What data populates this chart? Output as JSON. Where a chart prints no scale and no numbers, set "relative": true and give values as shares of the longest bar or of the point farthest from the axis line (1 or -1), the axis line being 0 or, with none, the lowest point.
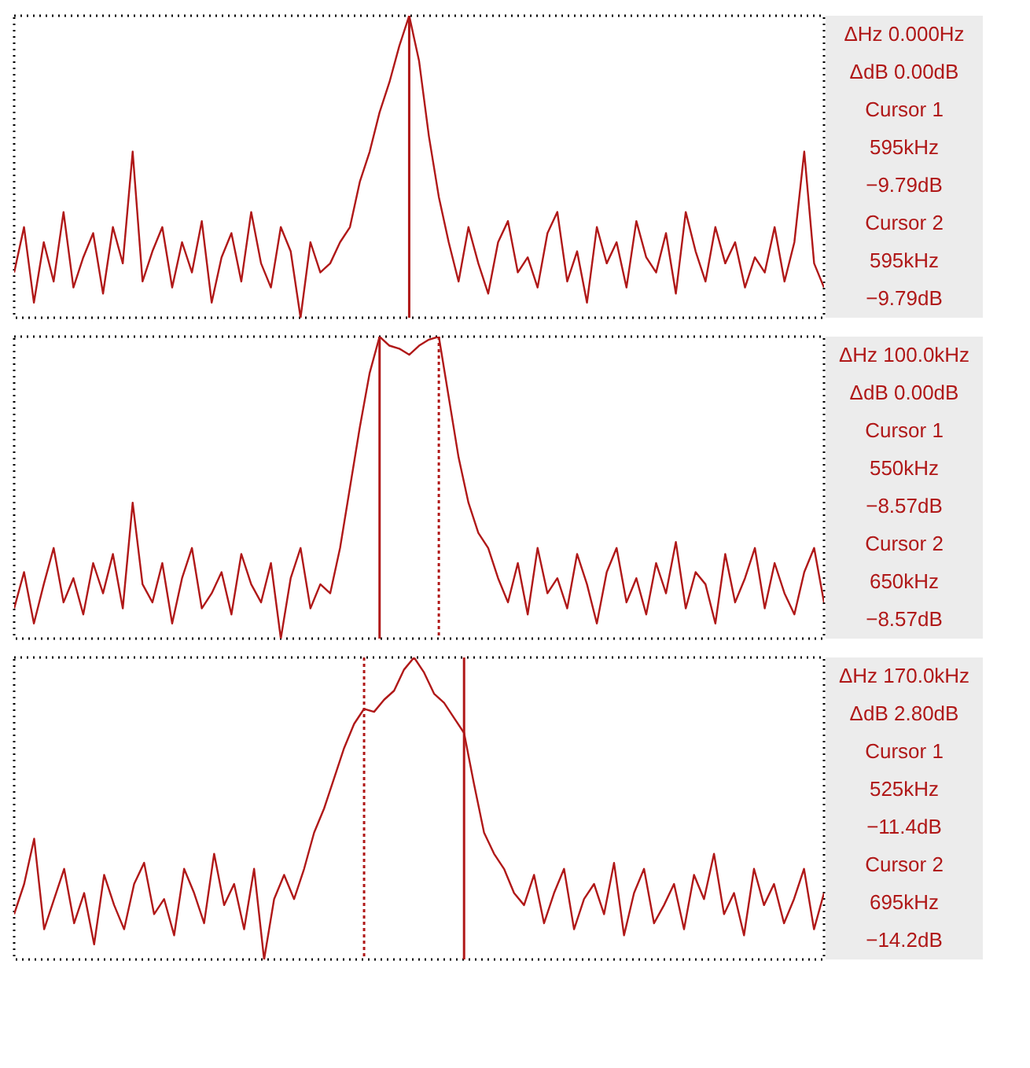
{
  "chart_data": [
    {
      "type": "line",
      "relative": true,
      "categories": [
        null,
        null,
        null,
        null,
        null,
        null,
        null,
        null,
        null,
        null,
        null,
        null,
        null,
        null,
        null,
        null,
        null,
        null,
        null,
        null,
        null,
        null,
        null,
        null,
        null,
        null,
        null,
        null,
        null,
        null,
        null,
        null,
        null,
        null,
        null,
        null,
        null,
        null,
        null,
        null,
        null,
        null,
        null,
        null,
        null,
        null,
        null,
        null,
        null,
        null,
        null,
        null,
        null,
        null,
        null,
        null,
        null,
        null,
        null,
        null,
        null,
        null,
        null,
        null,
        null,
        null,
        null,
        null,
        null,
        null,
        null,
        null,
        null,
        null,
        null,
        null,
        null,
        null,
        null,
        null,
        null,
        null,
        null
      ],
      "series": [
        {
          "color": "#b01818",
          "values": [
            0.15,
            0.3,
            0.05,
            0.25,
            0.12,
            0.35,
            0.1,
            0.2,
            0.28,
            0.08,
            0.3,
            0.18,
            0.55,
            0.12,
            0.22,
            0.3,
            0.1,
            0.25,
            0.15,
            0.32,
            0.05,
            0.2,
            0.28,
            0.12,
            0.35,
            0.18,
            0.1,
            0.3,
            0.22,
            0.0,
            0.25,
            0.15,
            0.18,
            0.25,
            0.3,
            0.45,
            0.55,
            0.68,
            0.78,
            0.9,
            1.0,
            0.85,
            0.6,
            0.4,
            0.25,
            0.12,
            0.3,
            0.18,
            0.08,
            0.25,
            0.32,
            0.15,
            0.2,
            0.1,
            0.28,
            0.35,
            0.12,
            0.22,
            0.05,
            0.3,
            0.18,
            0.25,
            0.1,
            0.32,
            0.2,
            0.15,
            0.28,
            0.08,
            0.35,
            0.22,
            0.12,
            0.3,
            0.18,
            0.25,
            0.1,
            0.2,
            0.15,
            0.3,
            0.12,
            0.25,
            0.55,
            0.18,
            0.1
          ]
        }
      ],
      "annotations": [
        "ΔHz 0.000Hz",
        "ΔdB 0.00dB",
        "Cursor 1",
        "595kHz",
        "−9.79dB",
        "Cursor 2",
        "595kHz",
        "−9.79dB"
      ]
    },
    {
      "type": "line",
      "relative": true,
      "categories": [
        null,
        null,
        null,
        null,
        null,
        null,
        null,
        null,
        null,
        null,
        null,
        null,
        null,
        null,
        null,
        null,
        null,
        null,
        null,
        null,
        null,
        null,
        null,
        null,
        null,
        null,
        null,
        null,
        null,
        null,
        null,
        null,
        null,
        null,
        null,
        null,
        null,
        null,
        null,
        null,
        null,
        null,
        null,
        null,
        null,
        null,
        null,
        null,
        null,
        null,
        null,
        null,
        null,
        null,
        null,
        null,
        null,
        null,
        null,
        null,
        null,
        null,
        null,
        null,
        null,
        null,
        null,
        null,
        null,
        null,
        null,
        null,
        null,
        null,
        null,
        null,
        null,
        null,
        null,
        null,
        null,
        null,
        null
      ],
      "series": [
        {
          "color": "#b01818",
          "values": [
            0.1,
            0.22,
            0.05,
            0.18,
            0.3,
            0.12,
            0.2,
            0.08,
            0.25,
            0.15,
            0.28,
            0.1,
            0.45,
            0.18,
            0.12,
            0.25,
            0.05,
            0.2,
            0.3,
            0.1,
            0.15,
            0.22,
            0.08,
            0.28,
            0.18,
            0.12,
            0.25,
            0.0,
            0.2,
            0.3,
            0.1,
            0.18,
            0.15,
            0.3,
            0.5,
            0.7,
            0.88,
            1.0,
            0.97,
            0.96,
            0.94,
            0.97,
            0.99,
            1.0,
            0.8,
            0.6,
            0.45,
            0.35,
            0.3,
            0.2,
            0.12,
            0.25,
            0.08,
            0.3,
            0.15,
            0.2,
            0.1,
            0.28,
            0.18,
            0.05,
            0.22,
            0.3,
            0.12,
            0.2,
            0.08,
            0.25,
            0.15,
            0.32,
            0.1,
            0.22,
            0.18,
            0.05,
            0.28,
            0.12,
            0.2,
            0.3,
            0.1,
            0.25,
            0.15,
            0.08,
            0.22,
            0.3,
            0.12
          ]
        }
      ],
      "annotations": [
        "ΔHz 100.0kHz",
        "ΔdB 0.00dB",
        "Cursor 1",
        "550kHz",
        "−8.57dB",
        "Cursor 2",
        "650kHz",
        "−8.57dB"
      ]
    },
    {
      "type": "line",
      "relative": true,
      "categories": [
        null,
        null,
        null,
        null,
        null,
        null,
        null,
        null,
        null,
        null,
        null,
        null,
        null,
        null,
        null,
        null,
        null,
        null,
        null,
        null,
        null,
        null,
        null,
        null,
        null,
        null,
        null,
        null,
        null,
        null,
        null,
        null,
        null,
        null,
        null,
        null,
        null,
        null,
        null,
        null,
        null,
        null,
        null,
        null,
        null,
        null,
        null,
        null,
        null,
        null,
        null,
        null,
        null,
        null,
        null,
        null,
        null,
        null,
        null,
        null,
        null,
        null,
        null,
        null,
        null,
        null,
        null,
        null,
        null,
        null,
        null,
        null,
        null,
        null,
        null,
        null,
        null,
        null,
        null,
        null,
        null,
        null
      ],
      "series": [
        {
          "color": "#b01818",
          "values": [
            0.15,
            0.25,
            0.4,
            0.1,
            0.2,
            0.3,
            0.12,
            0.22,
            0.05,
            0.28,
            0.18,
            0.1,
            0.25,
            0.32,
            0.15,
            0.2,
            0.08,
            0.3,
            0.22,
            0.12,
            0.35,
            0.18,
            0.25,
            0.1,
            0.3,
            0.0,
            0.2,
            0.28,
            0.2,
            0.3,
            0.42,
            0.5,
            0.6,
            0.7,
            0.78,
            0.83,
            0.82,
            0.86,
            0.89,
            0.96,
            1.0,
            0.95,
            0.88,
            0.85,
            0.8,
            0.75,
            0.58,
            0.42,
            0.35,
            0.3,
            0.22,
            0.18,
            0.28,
            0.12,
            0.22,
            0.3,
            0.1,
            0.2,
            0.25,
            0.15,
            0.32,
            0.08,
            0.22,
            0.3,
            0.12,
            0.18,
            0.25,
            0.1,
            0.28,
            0.2,
            0.35,
            0.15,
            0.22,
            0.08,
            0.3,
            0.18,
            0.25,
            0.12,
            0.2,
            0.3,
            0.1,
            0.22
          ]
        }
      ],
      "annotations": [
        "ΔHz 170.0kHz",
        "ΔdB 2.80dB",
        "Cursor 1",
        "525kHz",
        "−11.4dB",
        "Cursor 2",
        "695kHz",
        "−14.2dB"
      ]
    }
  ]
}
